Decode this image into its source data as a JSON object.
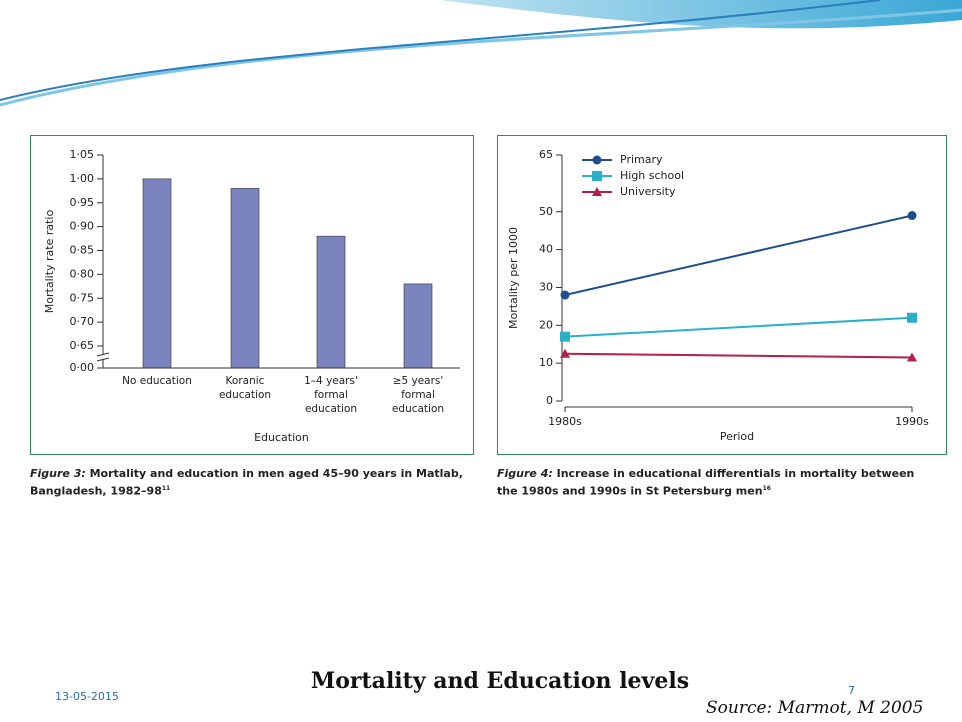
{
  "slide": {
    "title": "Mortality and Education levels",
    "date": "13-05-2015",
    "page": "7",
    "source": "Source: Marmot, M 2005"
  },
  "captions": [
    {
      "label": "Figure 3:",
      "text": "Mortality and education in men aged 45–90 years in Matlab, Bangladesh, 1982–98",
      "ref": "11"
    },
    {
      "label": "Figure 4:",
      "text": "Increase in educational differentials in mortality between the 1980s and 1990s in St Petersburg men",
      "ref": "16"
    }
  ],
  "chart_data": [
    {
      "type": "bar",
      "x_label": "Education",
      "y_label": "Mortality rate ratio",
      "categories": [
        "No education",
        "Koranic\neducation",
        "1–4 years'\nformal\neducation",
        "≥5 years'\nformal\neducation"
      ],
      "values": [
        1.0,
        0.98,
        0.88,
        0.78
      ],
      "color": "#7b84bf",
      "ylim": [
        0,
        1.05
      ],
      "axis_break": true,
      "yticks": [
        {
          "value": 0,
          "label": "0·00"
        },
        {
          "value": 0.65,
          "label": "0·65"
        },
        {
          "value": 0.7,
          "label": "0·70"
        },
        {
          "value": 0.75,
          "label": "0·75"
        },
        {
          "value": 0.8,
          "label": "0·80"
        },
        {
          "value": 0.85,
          "label": "0·85"
        },
        {
          "value": 0.9,
          "label": "0·90"
        },
        {
          "value": 0.95,
          "label": "0·95"
        },
        {
          "value": 1.0,
          "label": "1·00"
        },
        {
          "value": 1.05,
          "label": "1·05"
        }
      ]
    },
    {
      "type": "line",
      "x_label": "Period",
      "y_label": "Mortality per 1000",
      "categories": [
        "1980s",
        "1990s"
      ],
      "series": [
        {
          "name": "Primary",
          "color": "#1f4e8c",
          "marker": "circle",
          "values": [
            28,
            49
          ]
        },
        {
          "name": "High school",
          "color": "#2ab0c8",
          "marker": "square",
          "values": [
            17,
            22
          ]
        },
        {
          "name": "University",
          "color": "#b0204a",
          "marker": "triangle",
          "values": [
            12.5,
            11.5
          ]
        }
      ],
      "ylim": [
        0,
        65
      ],
      "yticks": [
        0,
        10,
        20,
        30,
        40,
        50,
        65
      ],
      "legend": "top-left"
    }
  ]
}
